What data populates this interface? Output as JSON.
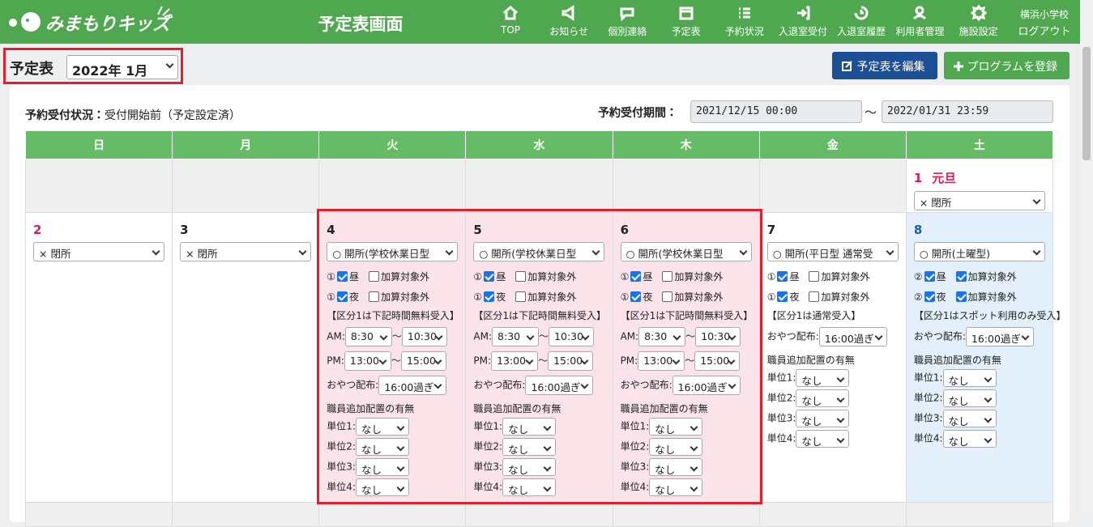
{
  "header": {
    "logo": "みまもりキッズ",
    "title": "予定表画面",
    "nav": [
      "TOP",
      "お知らせ",
      "個別連絡",
      "予定表",
      "予約状況",
      "入退室受付",
      "入退室履歴",
      "利用者管理",
      "施設設定"
    ],
    "school": "横浜小学校",
    "logout": "ログアウト"
  },
  "toolbar": {
    "label": "予定表",
    "month": "2022年 1月",
    "edit_button": "予定表を編集",
    "register_button": "プログラムを登録"
  },
  "status": {
    "label": "予約受付状況：",
    "value": "受付開始前（予定設定済）",
    "period_label": "予約受付期間：",
    "start": "2021/12/15 00:00",
    "separator": "～",
    "end": "2022/01/31 23:59"
  },
  "calendar": {
    "weekdays": [
      "日",
      "月",
      "火",
      "水",
      "木",
      "金",
      "土"
    ],
    "weeks": [
      [
        null,
        null,
        null,
        null,
        null,
        null,
        {
          "date": "1",
          "holiday": "元旦",
          "select": "× 閉所"
        }
      ],
      [
        {
          "date": "2",
          "select": "× 閉所"
        },
        {
          "date": "3",
          "select": "× 閉所"
        },
        {
          "date": "4",
          "bg": "#fbe3ea",
          "select": "○ 開所(学校休業日型",
          "slots": [
            {
              "num": "①",
              "label": "昼",
              "checked": true,
              "extra": "加算対象外",
              "extra_checked": false
            },
            {
              "num": "①",
              "label": "夜",
              "checked": true,
              "extra": "加算対象外",
              "extra_checked": false
            }
          ],
          "note": "【区分1は下記時間無料受入】",
          "times": [
            {
              "label": "AM:",
              "from": "8:30",
              "sep": "～",
              "to": "10:30"
            },
            {
              "label": "PM:",
              "from": "13:00",
              "sep": "～",
              "to": "15:00"
            }
          ],
          "snack_label": "おやつ配布:",
          "snack": "16:00過ぎ",
          "staff_title": "職員追加配置の有無",
          "units": [
            {
              "label": "単位1:",
              "value": "なし"
            },
            {
              "label": "単位2:",
              "value": "なし"
            },
            {
              "label": "単位3:",
              "value": "なし"
            },
            {
              "label": "単位4:",
              "value": "なし"
            }
          ]
        },
        {
          "date": "5",
          "bg": "#fbe3ea",
          "select": "○ 開所(学校休業日型",
          "slots": [
            {
              "num": "①",
              "label": "昼",
              "checked": true,
              "extra": "加算対象外",
              "extra_checked": false
            },
            {
              "num": "①",
              "label": "夜",
              "checked": true,
              "extra": "加算対象外",
              "extra_checked": false
            }
          ],
          "note": "【区分1は下記時間無料受入】",
          "times": [
            {
              "label": "AM:",
              "from": "8:30",
              "sep": "～",
              "to": "10:30"
            },
            {
              "label": "PM:",
              "from": "13:00",
              "sep": "～",
              "to": "15:00"
            }
          ],
          "snack_label": "おやつ配布:",
          "snack": "16:00過ぎ",
          "staff_title": "職員追加配置の有無",
          "units": [
            {
              "label": "単位1:",
              "value": "なし"
            },
            {
              "label": "単位2:",
              "value": "なし"
            },
            {
              "label": "単位3:",
              "value": "なし"
            },
            {
              "label": "単位4:",
              "value": "なし"
            }
          ]
        },
        {
          "date": "6",
          "bg": "#fbe3ea",
          "select": "○ 開所(学校休業日型",
          "slots": [
            {
              "num": "①",
              "label": "昼",
              "checked": true,
              "extra": "加算対象外",
              "extra_checked": false
            },
            {
              "num": "①",
              "label": "夜",
              "checked": true,
              "extra": "加算対象外",
              "extra_checked": false
            }
          ],
          "note": "【区分1は下記時間無料受入】",
          "times": [
            {
              "label": "AM:",
              "from": "8:30",
              "sep": "～",
              "to": "10:30"
            },
            {
              "label": "PM:",
              "from": "13:00",
              "sep": "～",
              "to": "15:00"
            }
          ],
          "snack_label": "おやつ配布:",
          "snack": "16:00過ぎ",
          "staff_title": "職員追加配置の有無",
          "units": [
            {
              "label": "単位1:",
              "value": "なし"
            },
            {
              "label": "単位2:",
              "value": "なし"
            },
            {
              "label": "単位3:",
              "value": "なし"
            },
            {
              "label": "単位4:",
              "value": "なし"
            }
          ]
        },
        {
          "date": "7",
          "select": "○ 開所(平日型 通常受",
          "slots": [
            {
              "num": "①",
              "label": "昼",
              "checked": true,
              "extra": "加算対象外",
              "extra_checked": false
            },
            {
              "num": "①",
              "label": "夜",
              "checked": true,
              "extra": "加算対象外",
              "extra_checked": false
            }
          ],
          "note": "【区分1は通常受入】",
          "snack_label": "おやつ配布:",
          "snack": "16:00過ぎ",
          "staff_title": "職員追加配置の有無",
          "units": [
            {
              "label": "単位1:",
              "value": "なし"
            },
            {
              "label": "単位2:",
              "value": "なし"
            },
            {
              "label": "単位3:",
              "value": "なし"
            },
            {
              "label": "単位4:",
              "value": "なし"
            }
          ]
        },
        {
          "date": "8",
          "bg": "#e3f0fb",
          "select": "○ 開所(土曜型)",
          "slots": [
            {
              "num": "②",
              "label": "昼",
              "checked": true,
              "extra": "加算対象外",
              "extra_checked": true
            },
            {
              "num": "②",
              "label": "夜",
              "checked": true,
              "extra": "加算対象外",
              "extra_checked": true
            }
          ],
          "note": "【区分1はスポット利用のみ受入】",
          "snack_label": "おやつ配布:",
          "snack": "16:00過ぎ",
          "staff_title": "職員追加配置の有無",
          "units": [
            {
              "label": "単位1:",
              "value": "なし"
            },
            {
              "label": "単位2:",
              "value": "なし"
            },
            {
              "label": "単位3:",
              "value": "なし"
            },
            {
              "label": "単位4:",
              "value": "なし"
            }
          ]
        }
      ],
      [
        null,
        null,
        null,
        null,
        null,
        null,
        null
      ]
    ]
  }
}
